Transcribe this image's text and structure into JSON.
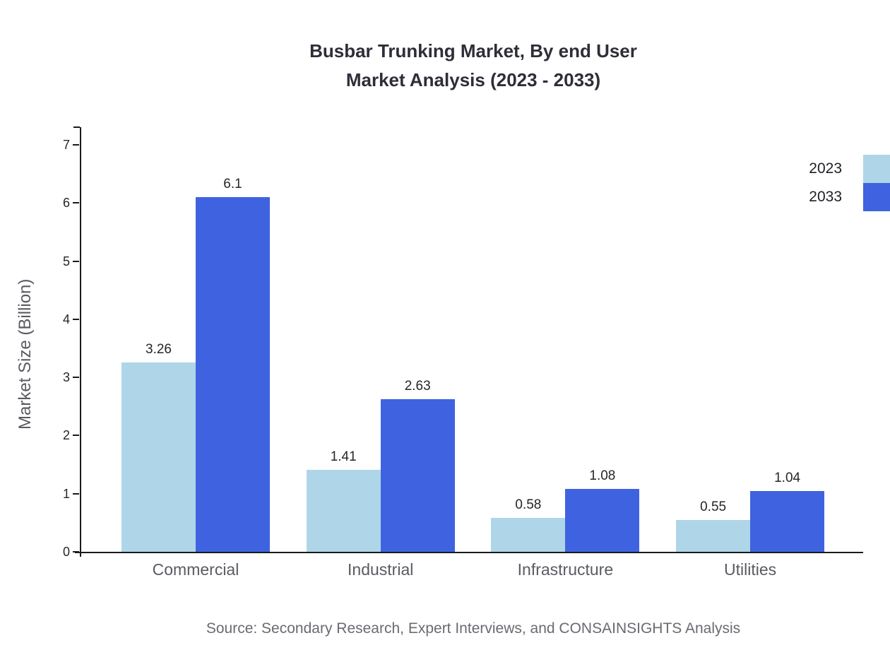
{
  "chart_data": {
    "type": "bar",
    "title": "Busbar Trunking Market, By end User Market Analysis (2023 - 2033)",
    "title_lines": [
      "Busbar Trunking Market, By end User",
      "Market Analysis (2023 - 2033)"
    ],
    "categories": [
      "Commercial",
      "Industrial",
      "Infrastructure",
      "Utilities"
    ],
    "series": [
      {
        "name": "2023",
        "color": "#aed6e8",
        "values": [
          3.26,
          1.41,
          0.58,
          0.55
        ]
      },
      {
        "name": "2033",
        "color": "#3f63e0",
        "values": [
          6.1,
          2.63,
          1.08,
          1.04
        ]
      }
    ],
    "xlabel": "",
    "ylabel": "Market Size (Billion)",
    "ylim": [
      0,
      7
    ],
    "ytick_step": 1,
    "grid": false,
    "legend_position": "top-right",
    "source": "Source: Secondary Research, Expert Interviews, and CONSAINSIGHTS Analysis"
  }
}
